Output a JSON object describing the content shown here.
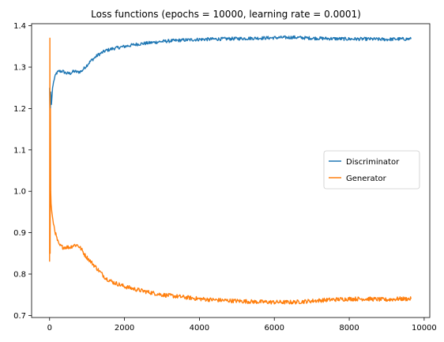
{
  "chart_data": {
    "type": "line",
    "title": "Loss functions (epochs = 10000, learning rate = 0.0001)",
    "xlabel": "",
    "ylabel": "",
    "xlim": [
      -480,
      10150
    ],
    "ylim": [
      0.695,
      1.405
    ],
    "xticks": [
      0,
      2000,
      4000,
      6000,
      8000,
      10000
    ],
    "yticks": [
      0.7,
      0.8,
      0.9,
      1.0,
      1.1,
      1.2,
      1.3,
      1.4
    ],
    "ytick_labels": [
      "0.7",
      "0.8",
      "0.9",
      "1.0",
      "1.1",
      "1.2",
      "1.3",
      "1.4"
    ],
    "grid": false,
    "legend_position": "center-right",
    "series": [
      {
        "name": "Discriminator",
        "color": "#1f77b4",
        "x": [
          0,
          15,
          30,
          50,
          80,
          120,
          180,
          250,
          350,
          450,
          550,
          650,
          750,
          850,
          950,
          1100,
          1300,
          1500,
          1700,
          2000,
          2300,
          2600,
          3000,
          3500,
          4000,
          4500,
          5000,
          5500,
          6000,
          6500,
          7000,
          7500,
          8000,
          8500,
          9000,
          9300,
          9650
        ],
        "y": [
          1.25,
          1.16,
          1.24,
          1.21,
          1.25,
          1.27,
          1.285,
          1.29,
          1.29,
          1.285,
          1.285,
          1.29,
          1.288,
          1.29,
          1.3,
          1.315,
          1.33,
          1.34,
          1.345,
          1.35,
          1.355,
          1.358,
          1.362,
          1.365,
          1.367,
          1.368,
          1.369,
          1.37,
          1.371,
          1.372,
          1.37,
          1.369,
          1.368,
          1.368,
          1.367,
          1.368,
          1.368
        ],
        "noise": 0.004
      },
      {
        "name": "Generator",
        "color": "#ff7f0e",
        "x": [
          0,
          8,
          15,
          22,
          30,
          40,
          60,
          90,
          130,
          180,
          250,
          350,
          450,
          550,
          650,
          750,
          850,
          950,
          1100,
          1300,
          1500,
          1700,
          2000,
          2300,
          2600,
          3000,
          3500,
          4000,
          4500,
          5000,
          5500,
          6000,
          6500,
          7000,
          7500,
          8000,
          8500,
          9000,
          9300,
          9650
        ],
        "y": [
          0.83,
          1.37,
          0.85,
          1.2,
          1.0,
          0.97,
          0.95,
          0.93,
          0.91,
          0.89,
          0.87,
          0.865,
          0.865,
          0.865,
          0.87,
          0.87,
          0.86,
          0.845,
          0.83,
          0.81,
          0.79,
          0.78,
          0.77,
          0.763,
          0.757,
          0.75,
          0.745,
          0.74,
          0.737,
          0.735,
          0.733,
          0.732,
          0.732,
          0.735,
          0.738,
          0.74,
          0.74,
          0.738,
          0.74,
          0.74
        ],
        "noise": 0.005
      }
    ]
  }
}
